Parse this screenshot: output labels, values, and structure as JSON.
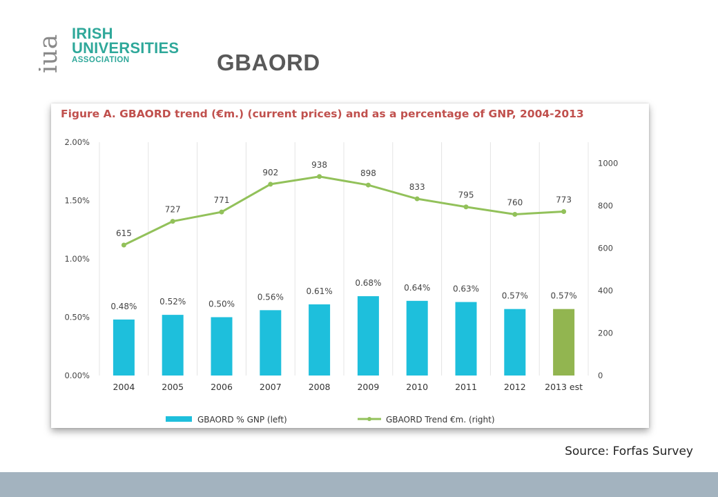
{
  "logo": {
    "mark": "iua",
    "line1": "IRISH",
    "line2": "UNIVERSITIES",
    "line3": "ASSOCIATION",
    "color": "#2fa89a"
  },
  "slide": {
    "title": "GBAORD",
    "source": "Source: Forfas Survey",
    "footer_color": "#a3b3bf"
  },
  "chart_data": {
    "type": "bar",
    "title": "Figure A.   GBAORD trend (€m.) (current prices) and as a percentage of GNP, 2004-2013",
    "title_color": "#c0504d",
    "categories": [
      "2004",
      "2005",
      "2006",
      "2007",
      "2008",
      "2009",
      "2010",
      "2011",
      "2012",
      "2013 est"
    ],
    "y_left": {
      "ticks": [
        "0.00%",
        "0.50%",
        "1.00%",
        "1.50%",
        "2.00%"
      ],
      "ylim": [
        0,
        2.0
      ]
    },
    "y_right": {
      "ticks": [
        "0",
        "200",
        "400",
        "600",
        "800",
        "1000"
      ],
      "ylim": [
        0,
        1100
      ]
    },
    "grid": "vertical",
    "legend_position": "bottom",
    "series": [
      {
        "name": "GBAORD % GNP (left)",
        "type": "bar",
        "axis": "left",
        "values": [
          0.48,
          0.52,
          0.5,
          0.56,
          0.61,
          0.68,
          0.64,
          0.63,
          0.57,
          0.57
        ],
        "labels": [
          "0.48%",
          "0.52%",
          "0.50%",
          "0.56%",
          "0.61%",
          "0.68%",
          "0.64%",
          "0.63%",
          "0.57%",
          "0.57%"
        ],
        "color": "#1ebfdc",
        "highlight_color": "#92b550",
        "highlight_index": 9
      },
      {
        "name": "GBAORD Trend €m. (right)",
        "type": "line",
        "axis": "right",
        "values": [
          615,
          727,
          771,
          902,
          938,
          898,
          833,
          795,
          760,
          773
        ],
        "labels": [
          "615",
          "727",
          "771",
          "902",
          "938",
          "898",
          "833",
          "795",
          "760",
          "773"
        ],
        "color": "#92c15a"
      }
    ]
  }
}
